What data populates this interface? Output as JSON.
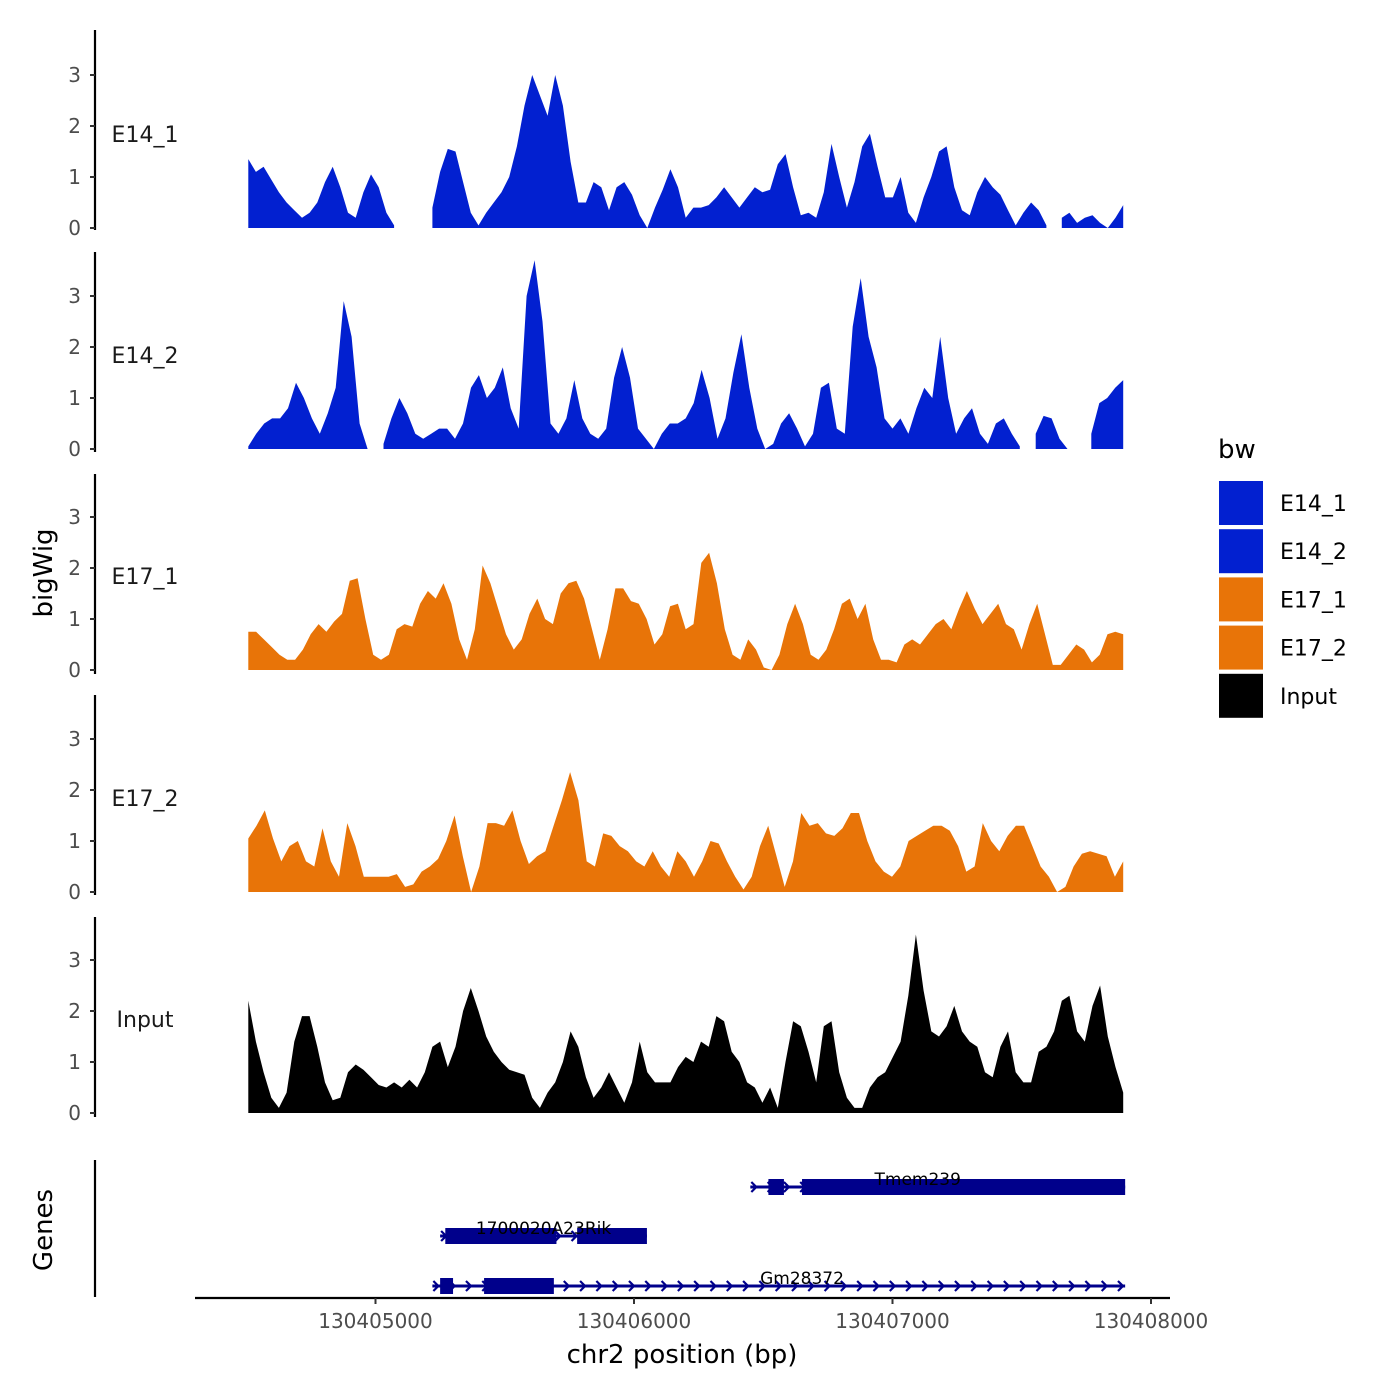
{
  "chart_data": {
    "type": "area",
    "y_axis_title": "bigWig",
    "x_axis_title": "chr2 position (bp)",
    "genes_axis_title": "Genes",
    "xlim": [
      130404300,
      130408000
    ],
    "xlim_signal": [
      130404500,
      130407900
    ],
    "ylim": [
      0,
      3.8
    ],
    "y_ticks": [
      "0",
      "1",
      "2",
      "3"
    ],
    "x_ticks": [
      {
        "value": 130405000,
        "label": "130405000"
      },
      {
        "value": 130406000,
        "label": "130406000"
      },
      {
        "value": 130407000,
        "label": "130407000"
      },
      {
        "value": 130408000,
        "label": "130408000"
      }
    ],
    "legend": {
      "title": "bw",
      "items": [
        {
          "label": "E14_1",
          "color": "#0220d0"
        },
        {
          "label": "E14_2",
          "color": "#0220d0"
        },
        {
          "label": "E17_1",
          "color": "#e87408"
        },
        {
          "label": "E17_2",
          "color": "#e87408"
        },
        {
          "label": "Input",
          "color": "#000000"
        }
      ]
    },
    "series": [
      {
        "name": "E14_1",
        "color": "#0220d0",
        "values": [
          1.35,
          1.1,
          1.2,
          0.95,
          0.7,
          0.5,
          0.35,
          0.2,
          0.3,
          0.5,
          0.9,
          1.2,
          0.8,
          0.3,
          0.2,
          0.7,
          1.05,
          0.8,
          0.3,
          0.05,
          null,
          null,
          null,
          null,
          0.4,
          1.1,
          1.55,
          1.5,
          0.9,
          0.3,
          0.05,
          0.3,
          0.5,
          0.7,
          1.0,
          1.6,
          2.4,
          3.0,
          2.6,
          2.2,
          3.0,
          2.4,
          1.3,
          0.5,
          0.5,
          0.9,
          0.8,
          0.35,
          0.8,
          0.9,
          0.65,
          0.25,
          0.0,
          0.4,
          0.75,
          1.15,
          0.8,
          0.2,
          0.4,
          0.4,
          0.45,
          0.6,
          0.8,
          0.6,
          0.4,
          0.6,
          0.8,
          0.7,
          0.75,
          1.25,
          1.45,
          0.8,
          0.25,
          0.3,
          0.2,
          0.7,
          1.65,
          1.0,
          0.4,
          0.9,
          1.6,
          1.85,
          1.2,
          0.6,
          0.6,
          1.0,
          0.3,
          0.1,
          0.6,
          1.0,
          1.5,
          1.6,
          0.8,
          0.35,
          0.25,
          0.7,
          1.0,
          0.8,
          0.65,
          0.35,
          0.05,
          0.3,
          0.5,
          0.35,
          0.05,
          null,
          0.2,
          0.3,
          0.1,
          0.2,
          0.25,
          0.1,
          0.0,
          0.2,
          0.45
        ]
      },
      {
        "name": "E14_2",
        "color": "#0220d0",
        "values": [
          0.05,
          0.3,
          0.5,
          0.6,
          0.6,
          0.8,
          1.3,
          1.0,
          0.6,
          0.3,
          0.7,
          1.2,
          2.9,
          2.2,
          0.5,
          0.0,
          null,
          0.1,
          0.6,
          1.0,
          0.7,
          0.3,
          0.2,
          0.3,
          0.4,
          0.4,
          0.2,
          0.5,
          1.2,
          1.45,
          1.0,
          1.2,
          1.6,
          0.8,
          0.4,
          3.0,
          3.7,
          2.5,
          0.5,
          0.3,
          0.6,
          1.35,
          0.6,
          0.3,
          0.2,
          0.4,
          1.4,
          2.0,
          1.4,
          0.4,
          0.2,
          0.0,
          0.3,
          0.5,
          0.5,
          0.6,
          0.9,
          1.55,
          1.0,
          0.2,
          0.6,
          1.5,
          2.25,
          1.2,
          0.4,
          0.0,
          0.1,
          0.5,
          0.7,
          0.4,
          0.05,
          0.3,
          1.2,
          1.3,
          0.4,
          0.3,
          2.4,
          3.35,
          2.2,
          1.6,
          0.6,
          0.4,
          0.6,
          0.3,
          0.8,
          1.2,
          1.0,
          2.2,
          1.0,
          0.3,
          0.6,
          0.8,
          0.3,
          0.1,
          0.5,
          0.6,
          0.3,
          0.05,
          null,
          0.3,
          0.65,
          0.6,
          0.2,
          0.0,
          null,
          null,
          0.3,
          0.9,
          1.0,
          1.2,
          1.35
        ]
      },
      {
        "name": "E17_1",
        "color": "#e87408",
        "values": [
          0.75,
          0.75,
          0.6,
          0.45,
          0.3,
          0.2,
          0.2,
          0.4,
          0.7,
          0.9,
          0.75,
          0.95,
          1.1,
          1.75,
          1.8,
          1.0,
          0.3,
          0.2,
          0.3,
          0.8,
          0.9,
          0.85,
          1.3,
          1.55,
          1.4,
          1.7,
          1.3,
          0.6,
          0.2,
          0.8,
          2.05,
          1.7,
          1.2,
          0.7,
          0.4,
          0.6,
          1.1,
          1.4,
          1.0,
          0.9,
          1.5,
          1.7,
          1.75,
          1.4,
          0.8,
          0.2,
          0.8,
          1.6,
          1.6,
          1.35,
          1.3,
          1.0,
          0.5,
          0.7,
          1.25,
          1.3,
          0.8,
          0.9,
          2.1,
          2.3,
          1.7,
          0.8,
          0.3,
          0.2,
          0.6,
          0.4,
          0.05,
          0.0,
          0.3,
          0.9,
          1.3,
          0.9,
          0.3,
          0.2,
          0.4,
          0.8,
          1.3,
          1.4,
          1.0,
          1.3,
          0.6,
          0.2,
          0.2,
          0.15,
          0.5,
          0.6,
          0.5,
          0.7,
          0.9,
          1.0,
          0.8,
          1.2,
          1.55,
          1.2,
          0.9,
          1.1,
          1.3,
          0.9,
          0.8,
          0.4,
          0.9,
          1.3,
          0.7,
          0.1,
          0.1,
          0.3,
          0.5,
          0.4,
          0.15,
          0.3,
          0.7,
          0.75,
          0.7
        ]
      },
      {
        "name": "E17_2",
        "color": "#e87408",
        "values": [
          1.05,
          1.3,
          1.6,
          1.05,
          0.6,
          0.9,
          1.0,
          0.6,
          0.5,
          1.25,
          0.6,
          0.3,
          1.35,
          0.9,
          0.3,
          0.3,
          0.3,
          0.3,
          0.35,
          0.1,
          0.15,
          0.4,
          0.5,
          0.65,
          1.0,
          1.5,
          0.7,
          0.0,
          0.5,
          1.35,
          1.35,
          1.3,
          1.6,
          1.0,
          0.55,
          0.7,
          0.8,
          1.3,
          1.8,
          2.35,
          1.8,
          0.6,
          0.5,
          1.15,
          1.1,
          0.9,
          0.8,
          0.6,
          0.5,
          0.8,
          0.5,
          0.3,
          0.8,
          0.6,
          0.3,
          0.6,
          1.0,
          0.95,
          0.6,
          0.3,
          0.05,
          0.3,
          0.9,
          1.3,
          0.7,
          0.1,
          0.6,
          1.55,
          1.3,
          1.35,
          1.15,
          1.1,
          1.25,
          1.55,
          1.55,
          1.0,
          0.6,
          0.4,
          0.3,
          0.5,
          1.0,
          1.1,
          1.2,
          1.3,
          1.3,
          1.2,
          0.9,
          0.4,
          0.5,
          1.35,
          1.0,
          0.8,
          1.1,
          1.3,
          1.3,
          0.9,
          0.5,
          0.3,
          0.0,
          0.1,
          0.5,
          0.75,
          0.8,
          0.75,
          0.7,
          0.3,
          0.6
        ]
      },
      {
        "name": "Input",
        "color": "#000000",
        "values": [
          2.2,
          1.4,
          0.8,
          0.3,
          0.1,
          0.4,
          1.4,
          1.9,
          1.9,
          1.3,
          0.6,
          0.25,
          0.3,
          0.8,
          0.95,
          0.85,
          0.7,
          0.55,
          0.5,
          0.6,
          0.5,
          0.65,
          0.5,
          0.8,
          1.3,
          1.4,
          0.9,
          1.3,
          2.0,
          2.45,
          2.0,
          1.5,
          1.2,
          1.0,
          0.85,
          0.8,
          0.75,
          0.3,
          0.1,
          0.4,
          0.6,
          1.0,
          1.6,
          1.3,
          0.7,
          0.3,
          0.5,
          0.8,
          0.5,
          0.2,
          0.6,
          1.4,
          0.8,
          0.6,
          0.6,
          0.6,
          0.9,
          1.1,
          1.0,
          1.4,
          1.3,
          1.9,
          1.8,
          1.2,
          1.0,
          0.6,
          0.5,
          0.2,
          0.5,
          0.1,
          1.0,
          1.8,
          1.7,
          1.2,
          0.6,
          1.7,
          1.8,
          0.8,
          0.3,
          0.1,
          0.1,
          0.5,
          0.7,
          0.8,
          1.1,
          1.4,
          2.3,
          3.5,
          2.4,
          1.6,
          1.5,
          1.7,
          2.1,
          1.6,
          1.4,
          1.3,
          0.8,
          0.7,
          1.3,
          1.6,
          0.8,
          0.6,
          0.6,
          1.2,
          1.3,
          1.6,
          2.2,
          2.3,
          1.6,
          1.4,
          2.1,
          2.5,
          1.5,
          0.9,
          0.4
        ]
      }
    ],
    "genes": [
      {
        "name": "Tmem239",
        "start": 130406450,
        "end": 130407900,
        "strand": "+",
        "exons": [
          [
            130406520,
            130406580
          ],
          [
            130406650,
            130407900
          ]
        ]
      },
      {
        "name": "1700020A23Rik",
        "start": 130405250,
        "end": 130406050,
        "strand": "+",
        "exons": [
          [
            130405270,
            130405700
          ],
          [
            130405780,
            130406050
          ]
        ]
      },
      {
        "name": "Gm28372",
        "start": 130405220,
        "end": 130407900,
        "strand": "+",
        "exons": [
          [
            130405250,
            130405300
          ],
          [
            130405420,
            130405690
          ]
        ]
      }
    ]
  }
}
